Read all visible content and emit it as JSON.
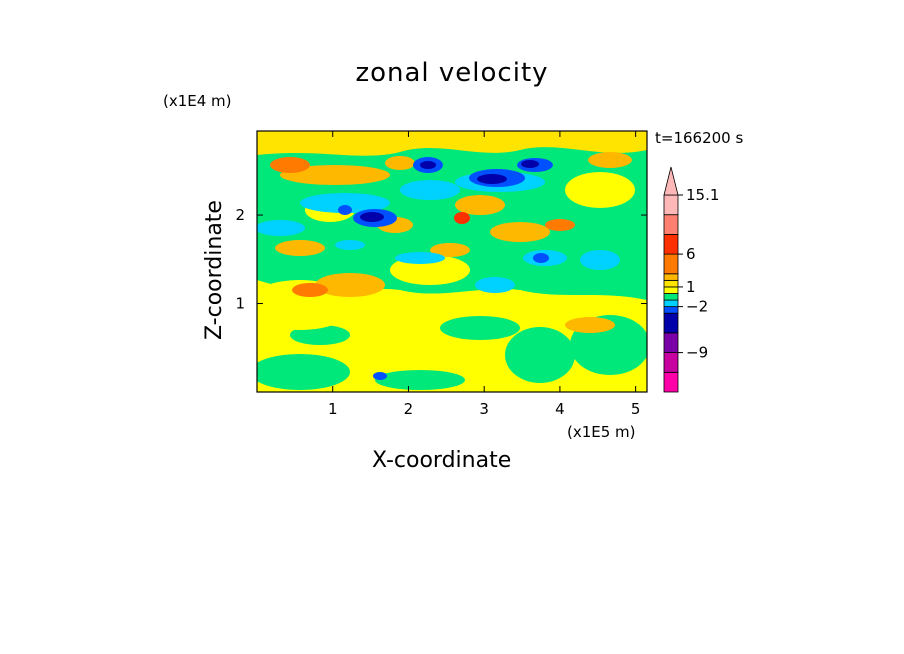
{
  "chart_data": {
    "type": "heatmap",
    "title": "zonal velocity",
    "xlabel": "X-coordinate",
    "ylabel": "Z-coordinate",
    "x_unit": "(x1E5 m)",
    "y_unit": "(x1E4 m)",
    "time_label": "t=166200 s",
    "xlim": [
      0,
      5.15
    ],
    "ylim": [
      0,
      2.95
    ],
    "x_ticks": [
      1,
      2,
      3,
      4,
      5
    ],
    "y_ticks": [
      1,
      2
    ],
    "colorbar": {
      "levels": [
        -15,
        -12,
        -9,
        -6,
        -3,
        -2,
        -1,
        0,
        1,
        2,
        3,
        6,
        9,
        12,
        15.1
      ],
      "labels": [
        15.1,
        6,
        1,
        -2,
        -9
      ],
      "colors": [
        "#ff00a8",
        "#c800a0",
        "#7a00a8",
        "#0000aa",
        "#0050ff",
        "#00d2ff",
        "#00e87a",
        "#ffff00",
        "#ffe400",
        "#ffb800",
        "#ff7a00",
        "#ff3000",
        "#ff8070",
        "#ffb8b8"
      ],
      "extend": "max"
    },
    "grid": false
  }
}
